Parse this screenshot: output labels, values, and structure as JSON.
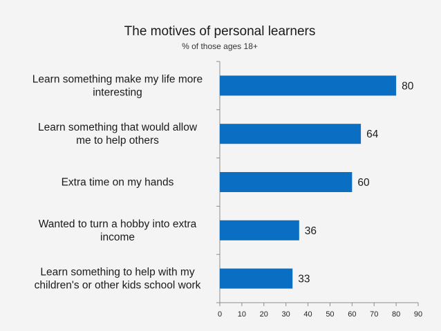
{
  "chart_data": {
    "type": "bar",
    "orientation": "horizontal",
    "title": "The motives of personal learners",
    "subtitle": "% of those ages 18+",
    "categories": [
      [
        "Learn something make my life more",
        "interesting"
      ],
      [
        "Learn something that would allow",
        "me to help others"
      ],
      [
        "Extra time on my hands"
      ],
      [
        "Wanted to turn a hobby into extra",
        "income"
      ],
      [
        "Learn something to help with my",
        "children's or other kids school work"
      ]
    ],
    "values": [
      80,
      64,
      60,
      36,
      33
    ],
    "value_labels": [
      "80",
      "64",
      "60",
      "36",
      "33"
    ],
    "xlim": [
      0,
      90
    ],
    "xticks": [
      0,
      10,
      20,
      30,
      40,
      50,
      60,
      70,
      80,
      90
    ],
    "xtick_labels": [
      "0",
      "10",
      "20",
      "30",
      "40",
      "50",
      "60",
      "70",
      "80",
      "90"
    ],
    "grid": false,
    "legend": "none",
    "bar_color": "#0a6fc2"
  }
}
